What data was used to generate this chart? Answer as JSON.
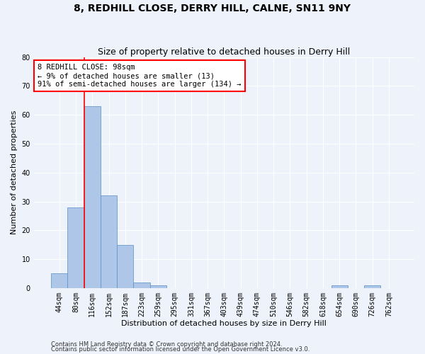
{
  "title": "8, REDHILL CLOSE, DERRY HILL, CALNE, SN11 9NY",
  "subtitle": "Size of property relative to detached houses in Derry Hill",
  "xlabel": "Distribution of detached houses by size in Derry Hill",
  "ylabel": "Number of detached properties",
  "footnote1": "Contains HM Land Registry data © Crown copyright and database right 2024.",
  "footnote2": "Contains public sector information licensed under the Open Government Licence v3.0.",
  "bins": [
    "44sqm",
    "80sqm",
    "116sqm",
    "152sqm",
    "187sqm",
    "223sqm",
    "259sqm",
    "295sqm",
    "331sqm",
    "367sqm",
    "403sqm",
    "439sqm",
    "474sqm",
    "510sqm",
    "546sqm",
    "582sqm",
    "618sqm",
    "654sqm",
    "690sqm",
    "726sqm",
    "762sqm"
  ],
  "values": [
    5,
    28,
    63,
    32,
    15,
    2,
    1,
    0,
    0,
    0,
    0,
    0,
    0,
    0,
    0,
    0,
    0,
    1,
    0,
    1,
    0
  ],
  "bar_color": "#aec6e8",
  "bar_edge_color": "#5a8fc4",
  "ylim": [
    0,
    80
  ],
  "yticks": [
    0,
    10,
    20,
    30,
    40,
    50,
    60,
    70,
    80
  ],
  "background_color": "#eef2fa",
  "grid_color": "#ffffff",
  "vline_x": 1.5,
  "annotation_label": "8 REDHILL CLOSE: 98sqm",
  "annotation_line1": "← 9% of detached houses are smaller (13)",
  "annotation_line2": "91% of semi-detached houses are larger (134) →",
  "title_fontsize": 10,
  "subtitle_fontsize": 9,
  "axis_label_fontsize": 8,
  "tick_fontsize": 7,
  "annotation_fontsize": 7.5,
  "footnote_fontsize": 6
}
